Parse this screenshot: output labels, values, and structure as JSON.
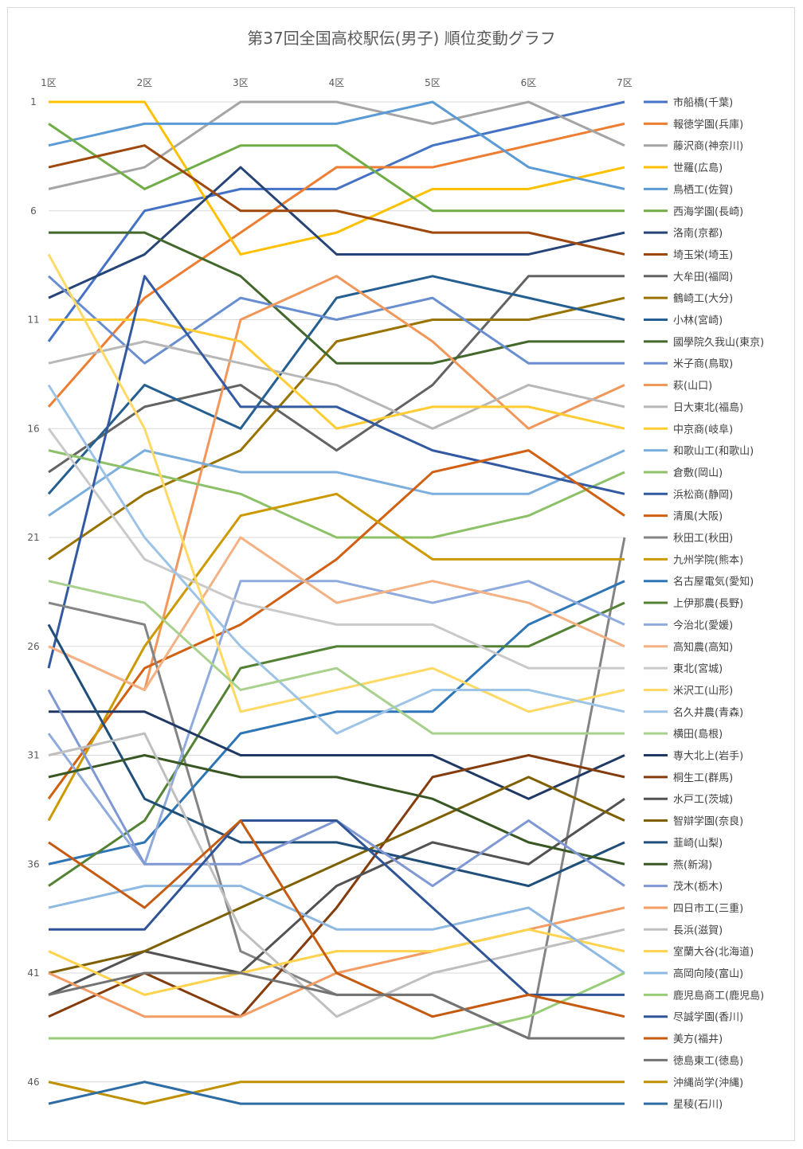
{
  "chart_data": {
    "type": "line",
    "title": "第37回全国高校駅伝(男子) 順位変動グラフ",
    "categories": [
      "1区",
      "2区",
      "3区",
      "4区",
      "5区",
      "6区",
      "7区"
    ],
    "y_ticks": [
      "1",
      "6",
      "11",
      "16",
      "21",
      "26",
      "31",
      "36",
      "41",
      "46"
    ],
    "ylim": [
      1,
      47
    ],
    "y_inverted": true,
    "grid": "horizontal",
    "legend_position": "right",
    "series": [
      {
        "name": "市船橋(千葉)",
        "color": "#4472c4",
        "values": [
          12,
          6,
          5,
          5,
          3,
          2,
          1
        ]
      },
      {
        "name": "報徳学園(兵庫)",
        "color": "#ed7d31",
        "values": [
          15,
          10,
          7,
          4,
          4,
          3,
          2
        ]
      },
      {
        "name": "藤沢商(神奈川)",
        "color": "#a5a5a5",
        "values": [
          5,
          4,
          1,
          1,
          2,
          1,
          3
        ]
      },
      {
        "name": "世羅(広島)",
        "color": "#ffc000",
        "values": [
          1,
          1,
          8,
          7,
          5,
          5,
          4
        ]
      },
      {
        "name": "鳥栖工(佐賀)",
        "color": "#5b9bd5",
        "values": [
          3,
          2,
          2,
          2,
          1,
          4,
          5
        ]
      },
      {
        "name": "西海学園(長崎)",
        "color": "#70ad47",
        "values": [
          2,
          5,
          3,
          3,
          6,
          6,
          6
        ]
      },
      {
        "name": "洛南(京都)",
        "color": "#264478",
        "values": [
          10,
          8,
          4,
          8,
          8,
          8,
          7
        ]
      },
      {
        "name": "埼玉栄(埼玉)",
        "color": "#9e480e",
        "values": [
          4,
          3,
          6,
          6,
          7,
          7,
          8
        ]
      },
      {
        "name": "大牟田(福岡)",
        "color": "#636363",
        "values": [
          18,
          15,
          14,
          17,
          14,
          9,
          9
        ]
      },
      {
        "name": "鶴崎工(大分)",
        "color": "#997300",
        "values": [
          22,
          19,
          17,
          12,
          11,
          11,
          10
        ]
      },
      {
        "name": "小林(宮崎)",
        "color": "#255e91",
        "values": [
          19,
          14,
          16,
          10,
          9,
          10,
          11
        ]
      },
      {
        "name": "國學院久我山(東京)",
        "color": "#43682b",
        "values": [
          7,
          7,
          9,
          13,
          13,
          12,
          12
        ]
      },
      {
        "name": "米子商(鳥取)",
        "color": "#698ed0",
        "values": [
          9,
          13,
          10,
          11,
          10,
          13,
          13
        ]
      },
      {
        "name": "萩(山口)",
        "color": "#f1975a",
        "values": [
          26,
          28,
          11,
          9,
          12,
          16,
          14
        ]
      },
      {
        "name": "日大東北(福島)",
        "color": "#b7b7b7",
        "values": [
          13,
          12,
          13,
          14,
          16,
          14,
          15
        ]
      },
      {
        "name": "中京商(岐阜)",
        "color": "#ffcd33",
        "values": [
          11,
          11,
          12,
          16,
          15,
          15,
          16
        ]
      },
      {
        "name": "和歌山工(和歌山)",
        "color": "#7cafdd",
        "values": [
          20,
          17,
          18,
          18,
          19,
          19,
          17
        ]
      },
      {
        "name": "倉敷(岡山)",
        "color": "#8cc168",
        "values": [
          17,
          18,
          19,
          21,
          21,
          20,
          18
        ]
      },
      {
        "name": "浜松商(静岡)",
        "color": "#335aa1",
        "values": [
          27,
          9,
          15,
          15,
          17,
          18,
          19
        ]
      },
      {
        "name": "清風(大阪)",
        "color": "#d26012",
        "values": [
          33,
          27,
          25,
          22,
          18,
          17,
          20
        ]
      },
      {
        "name": "秋田工(秋田)",
        "color": "#848484",
        "values": [
          24,
          25,
          40,
          42,
          42,
          44,
          21
        ]
      },
      {
        "name": "九州学院(熊本)",
        "color": "#cc9a00",
        "values": [
          34,
          26,
          20,
          19,
          22,
          22,
          22
        ]
      },
      {
        "name": "名古屋電気(愛知)",
        "color": "#2e75b6",
        "values": [
          36,
          35,
          30,
          29,
          29,
          25,
          23
        ]
      },
      {
        "name": "上伊那農(長野)",
        "color": "#548235",
        "values": [
          37,
          34,
          27,
          26,
          26,
          26,
          24
        ]
      },
      {
        "name": "今治北(愛媛)",
        "color": "#8faadc",
        "values": [
          30,
          36,
          23,
          23,
          24,
          23,
          25
        ]
      },
      {
        "name": "高知農(高知)",
        "color": "#f4b183",
        "values": [
          26,
          28,
          21,
          24,
          23,
          24,
          26
        ]
      },
      {
        "name": "東北(宮城)",
        "color": "#c9c9c9",
        "values": [
          16,
          22,
          24,
          25,
          25,
          27,
          27
        ]
      },
      {
        "name": "米沢工(山形)",
        "color": "#ffd966",
        "values": [
          8,
          16,
          29,
          28,
          27,
          29,
          28
        ]
      },
      {
        "name": "名久井農(青森)",
        "color": "#9dc3e6",
        "values": [
          14,
          21,
          26,
          30,
          28,
          28,
          29
        ]
      },
      {
        "name": "横田(島根)",
        "color": "#a9d18e",
        "values": [
          23,
          24,
          28,
          27,
          30,
          30,
          30
        ]
      },
      {
        "name": "専大北上(岩手)",
        "color": "#203864",
        "values": [
          29,
          29,
          31,
          31,
          31,
          33,
          31
        ]
      },
      {
        "name": "桐生工(群馬)",
        "color": "#843c0c",
        "values": [
          43,
          41,
          43,
          38,
          32,
          31,
          32
        ]
      },
      {
        "name": "水戸工(茨城)",
        "color": "#525252",
        "values": [
          42,
          40,
          41,
          37,
          35,
          36,
          33
        ]
      },
      {
        "name": "智辯学園(奈良)",
        "color": "#7f6000",
        "values": [
          41,
          40,
          38,
          36,
          34,
          32,
          34
        ]
      },
      {
        "name": "韮崎(山梨)",
        "color": "#1f4e79",
        "values": [
          25,
          33,
          35,
          35,
          36,
          37,
          35
        ]
      },
      {
        "name": "燕(新潟)",
        "color": "#385723",
        "values": [
          32,
          31,
          32,
          32,
          33,
          35,
          36
        ]
      },
      {
        "name": "茂木(栃木)",
        "color": "#7f98d4",
        "values": [
          28,
          36,
          36,
          34,
          37,
          34,
          37
        ]
      },
      {
        "name": "四日市工(三重)",
        "color": "#f39c63",
        "values": [
          41,
          43,
          43,
          41,
          40,
          39,
          38
        ]
      },
      {
        "name": "長浜(滋賀)",
        "color": "#bfbfbf",
        "values": [
          31,
          30,
          39,
          43,
          41,
          40,
          39
        ]
      },
      {
        "name": "室蘭大谷(北海道)",
        "color": "#ffd34d",
        "values": [
          40,
          42,
          41,
          40,
          40,
          39,
          40
        ]
      },
      {
        "name": "高岡向陵(富山)",
        "color": "#8eb9e3",
        "values": [
          38,
          37,
          37,
          39,
          39,
          38,
          41
        ]
      },
      {
        "name": "鹿児島商工(鹿児島)",
        "color": "#99cc77",
        "values": [
          44,
          44,
          44,
          44,
          44,
          43,
          41
        ]
      },
      {
        "name": "尽誠学園(香川)",
        "color": "#2f5597",
        "values": [
          39,
          39,
          34,
          34,
          38,
          42,
          42
        ]
      },
      {
        "name": "美方(福井)",
        "color": "#c55a11",
        "values": [
          35,
          38,
          34,
          41,
          43,
          42,
          43
        ]
      },
      {
        "name": "徳島東工(徳島)",
        "color": "#737373",
        "values": [
          42,
          41,
          41,
          42,
          42,
          44,
          44
        ]
      },
      {
        "name": "沖縄尚学(沖縄)",
        "color": "#bf9000",
        "values": [
          46,
          47,
          46,
          46,
          46,
          46,
          46
        ]
      },
      {
        "name": "星稜(石川)",
        "color": "#2e6da4",
        "values": [
          47,
          46,
          47,
          47,
          47,
          47,
          47
        ]
      }
    ]
  }
}
